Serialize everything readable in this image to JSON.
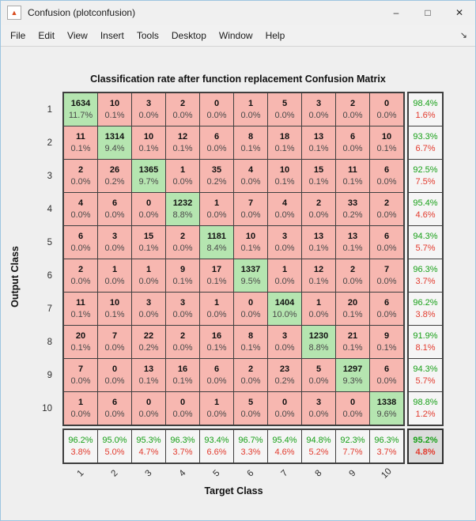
{
  "window": {
    "title": "Confusion (plotconfusion)",
    "icon": "matlab-logo",
    "icon_glyph": "▲",
    "controls": {
      "minimize": "–",
      "maximize": "□",
      "close": "✕"
    }
  },
  "menu": {
    "items": [
      "File",
      "Edit",
      "View",
      "Insert",
      "Tools",
      "Desktop",
      "Window",
      "Help"
    ],
    "dock_arrow": "↘"
  },
  "figure": {
    "title": "Classification rate after function replacement Confusion Matrix",
    "xlabel": "Target Class",
    "ylabel": "Output Class"
  },
  "colors": {
    "diagonal_cell": "#b5e5b0",
    "offdiagonal_cell": "#f7b7b0",
    "summary_cell": "#f5f5f5",
    "overall_cell": "#dcdcdc",
    "good_text": "#18a018",
    "bad_text": "#e23b2e",
    "grid_line": "#3f3f3f"
  },
  "chart_data": {
    "type": "heatmap",
    "title": "Classification rate after function replacement Confusion Matrix",
    "xlabel": "Target Class",
    "ylabel": "Output Class",
    "classes": [
      "1",
      "2",
      "3",
      "4",
      "5",
      "6",
      "7",
      "8",
      "9",
      "10"
    ],
    "counts": [
      [
        1634,
        10,
        3,
        2,
        0,
        1,
        5,
        3,
        2,
        0
      ],
      [
        11,
        1314,
        10,
        12,
        6,
        8,
        18,
        13,
        6,
        10
      ],
      [
        2,
        26,
        1365,
        1,
        35,
        4,
        10,
        15,
        11,
        6
      ],
      [
        4,
        6,
        0,
        1232,
        1,
        7,
        4,
        2,
        33,
        2
      ],
      [
        6,
        3,
        15,
        2,
        1181,
        10,
        3,
        13,
        13,
        6
      ],
      [
        2,
        1,
        1,
        9,
        17,
        1337,
        1,
        12,
        2,
        7
      ],
      [
        11,
        10,
        3,
        3,
        1,
        0,
        1404,
        1,
        20,
        6
      ],
      [
        20,
        7,
        22,
        2,
        16,
        8,
        3,
        1230,
        21,
        9
      ],
      [
        7,
        0,
        13,
        16,
        6,
        2,
        23,
        5,
        1297,
        6
      ],
      [
        1,
        6,
        0,
        0,
        1,
        5,
        0,
        3,
        0,
        1338
      ]
    ],
    "percents": [
      [
        "11.7%",
        "0.1%",
        "0.0%",
        "0.0%",
        "0.0%",
        "0.0%",
        "0.0%",
        "0.0%",
        "0.0%",
        "0.0%"
      ],
      [
        "0.1%",
        "9.4%",
        "0.1%",
        "0.1%",
        "0.0%",
        "0.1%",
        "0.1%",
        "0.1%",
        "0.0%",
        "0.1%"
      ],
      [
        "0.0%",
        "0.2%",
        "9.7%",
        "0.0%",
        "0.2%",
        "0.0%",
        "0.1%",
        "0.1%",
        "0.1%",
        "0.0%"
      ],
      [
        "0.0%",
        "0.0%",
        "0.0%",
        "8.8%",
        "0.0%",
        "0.0%",
        "0.0%",
        "0.0%",
        "0.2%",
        "0.0%"
      ],
      [
        "0.0%",
        "0.0%",
        "0.1%",
        "0.0%",
        "8.4%",
        "0.1%",
        "0.0%",
        "0.1%",
        "0.1%",
        "0.0%"
      ],
      [
        "0.0%",
        "0.0%",
        "0.0%",
        "0.1%",
        "0.1%",
        "9.5%",
        "0.0%",
        "0.1%",
        "0.0%",
        "0.0%"
      ],
      [
        "0.1%",
        "0.1%",
        "0.0%",
        "0.0%",
        "0.0%",
        "0.0%",
        "10.0%",
        "0.0%",
        "0.1%",
        "0.0%"
      ],
      [
        "0.1%",
        "0.0%",
        "0.2%",
        "0.0%",
        "0.1%",
        "0.1%",
        "0.0%",
        "8.8%",
        "0.1%",
        "0.1%"
      ],
      [
        "0.0%",
        "0.0%",
        "0.1%",
        "0.1%",
        "0.0%",
        "0.0%",
        "0.2%",
        "0.0%",
        "9.3%",
        "0.0%"
      ],
      [
        "0.0%",
        "0.0%",
        "0.0%",
        "0.0%",
        "0.0%",
        "0.0%",
        "0.0%",
        "0.0%",
        "0.0%",
        "9.6%"
      ]
    ],
    "row_summary": [
      {
        "ok": "98.4%",
        "err": "1.6%"
      },
      {
        "ok": "93.3%",
        "err": "6.7%"
      },
      {
        "ok": "92.5%",
        "err": "7.5%"
      },
      {
        "ok": "95.4%",
        "err": "4.6%"
      },
      {
        "ok": "94.3%",
        "err": "5.7%"
      },
      {
        "ok": "96.3%",
        "err": "3.7%"
      },
      {
        "ok": "96.2%",
        "err": "3.8%"
      },
      {
        "ok": "91.9%",
        "err": "8.1%"
      },
      {
        "ok": "94.3%",
        "err": "5.7%"
      },
      {
        "ok": "98.8%",
        "err": "1.2%"
      }
    ],
    "col_summary": [
      {
        "ok": "96.2%",
        "err": "3.8%"
      },
      {
        "ok": "95.0%",
        "err": "5.0%"
      },
      {
        "ok": "95.3%",
        "err": "4.7%"
      },
      {
        "ok": "96.3%",
        "err": "3.7%"
      },
      {
        "ok": "93.4%",
        "err": "6.6%"
      },
      {
        "ok": "96.7%",
        "err": "3.3%"
      },
      {
        "ok": "95.4%",
        "err": "4.6%"
      },
      {
        "ok": "94.8%",
        "err": "5.2%"
      },
      {
        "ok": "92.3%",
        "err": "7.7%"
      },
      {
        "ok": "96.3%",
        "err": "3.7%"
      }
    ],
    "overall": {
      "ok": "95.2%",
      "err": "4.8%"
    }
  }
}
